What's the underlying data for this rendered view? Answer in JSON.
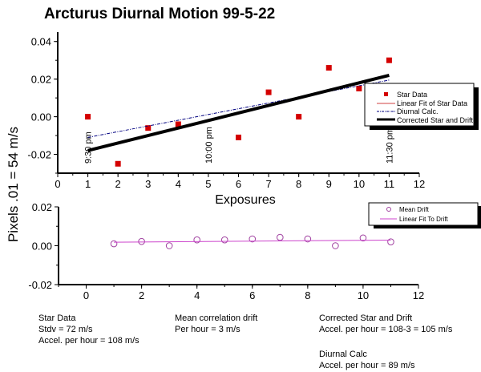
{
  "chart_data": [
    {
      "type": "scatter",
      "title": "Arcturus Diurnal Motion 99-5-22",
      "xlabel": "Exposures",
      "ylabel": "Pixels .01 = 54 m/s",
      "xlim": [
        0,
        12
      ],
      "ylim": [
        -0.03,
        0.045
      ],
      "xticks": [
        "0",
        "1",
        "2",
        "3",
        "4",
        "5",
        "6",
        "7",
        "8",
        "9",
        "10",
        "11",
        "12"
      ],
      "yticks": [
        "0.04",
        "0.02",
        "0.00",
        "-0.02"
      ],
      "ytick_values": [
        0.04,
        0.02,
        0.0,
        -0.02
      ],
      "annotations": [
        {
          "text": "9:30 pm",
          "x": 1
        },
        {
          "text": "10:00 pm",
          "x": 5
        },
        {
          "text": "11:30 pm",
          "x": 11
        }
      ],
      "series": [
        {
          "name": "Star Data",
          "kind": "points",
          "color": "#d40000",
          "x": [
            1,
            2,
            3,
            4,
            6,
            7,
            8,
            9,
            10,
            11
          ],
          "y": [
            0.0,
            -0.025,
            -0.006,
            -0.004,
            -0.011,
            0.013,
            0.0,
            0.026,
            0.015,
            0.03
          ]
        },
        {
          "name": "Linear Fit of Star Data",
          "kind": "line",
          "color": "#d04040",
          "x": [
            1,
            11
          ],
          "y": [
            -0.0175,
            0.0215
          ]
        },
        {
          "name": "Diurnal Calc.",
          "kind": "dashdot",
          "color": "#000080",
          "x": [
            1,
            11
          ],
          "y": [
            -0.011,
            0.0195
          ]
        },
        {
          "name": "Corrected  Star and Drift",
          "kind": "thick",
          "color": "#000000",
          "x": [
            1,
            11
          ],
          "y": [
            -0.018,
            0.022
          ]
        }
      ],
      "legend": "right"
    },
    {
      "type": "scatter",
      "xlim": [
        -1,
        12
      ],
      "ylim": [
        -0.02,
        0.02
      ],
      "xticks": [
        "0",
        "2",
        "4",
        "6",
        "8",
        "10",
        "12"
      ],
      "xtick_values": [
        0,
        2,
        4,
        6,
        8,
        10,
        12
      ],
      "yticks": [
        "0.02",
        "0.00",
        "-0.02"
      ],
      "ytick_values": [
        0.02,
        0.0,
        -0.02
      ],
      "series": [
        {
          "name": "Mean Drift",
          "kind": "circles",
          "color": "#a040a0",
          "x": [
            1,
            2,
            3,
            4,
            5,
            6,
            7,
            8,
            9,
            10,
            11
          ],
          "y": [
            0.001,
            0.0022,
            0.0,
            0.003,
            0.003,
            0.0035,
            0.0043,
            0.0035,
            0.0,
            0.004,
            0.002
          ]
        },
        {
          "name": "Linear Fit To Drift",
          "kind": "line",
          "color": "#cc44cc",
          "x": [
            1,
            11
          ],
          "y": [
            0.0018,
            0.0029
          ]
        }
      ],
      "legend": "top-right"
    }
  ],
  "notes": {
    "star": [
      "Star Data",
      "Stdv = 72 m/s",
      "Accel. per hour = 108 m/s"
    ],
    "drift": [
      "Mean correlation drift",
      "Per hour = 3 m/s"
    ],
    "corrected": [
      "Corrected Star and Drift",
      "Accel. per hour = 108-3 = 105 m/s"
    ],
    "diurnal": [
      "Diurnal Calc",
      "Accel. per hour = 89 m/s"
    ]
  }
}
